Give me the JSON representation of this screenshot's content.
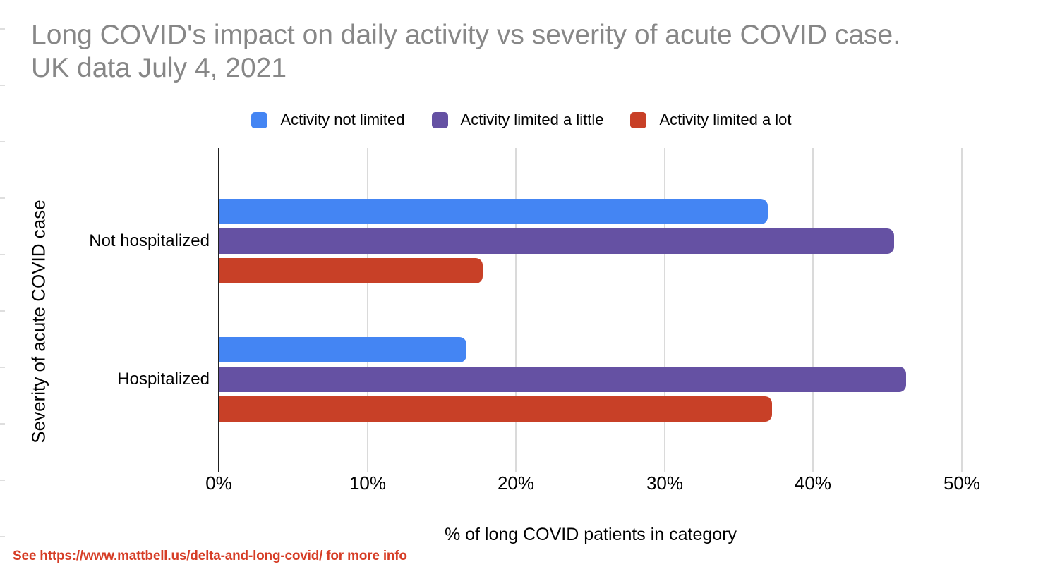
{
  "header": {
    "title_line1": "Long COVID's impact on daily activity vs severity of acute COVID case.",
    "title_line2": "UK data July 4, 2021"
  },
  "footer": {
    "text": "See https://www.mattbell.us/delta-and-long-covid/ for more info",
    "color": "#D63D26"
  },
  "chart_data": {
    "type": "bar",
    "orientation": "horizontal",
    "title": "Long COVID's impact on daily activity vs severity of acute COVID case. UK data July 4, 2021",
    "xlabel": "% of long COVID patients in category",
    "ylabel": "Severity of acute COVID case",
    "categories": [
      "Not hospitalized",
      "Hospitalized"
    ],
    "series": [
      {
        "name": "Activity not limited",
        "color": "#4485F3",
        "values": [
          36.9,
          16.6
        ]
      },
      {
        "name": "Activity limited a little",
        "color": "#6551A3",
        "values": [
          45.4,
          46.2
        ]
      },
      {
        "name": "Activity limited a lot",
        "color": "#C84027",
        "values": [
          17.7,
          37.2
        ]
      }
    ],
    "x_ticks": [
      "0%",
      "10%",
      "20%",
      "30%",
      "40%",
      "50%"
    ],
    "xlim": [
      0,
      50
    ],
    "grid": "vertical-gridlines",
    "legend_position": "top",
    "axis_color": "#212121",
    "gridline_color": "#DADADA",
    "title_color": "#878787"
  }
}
